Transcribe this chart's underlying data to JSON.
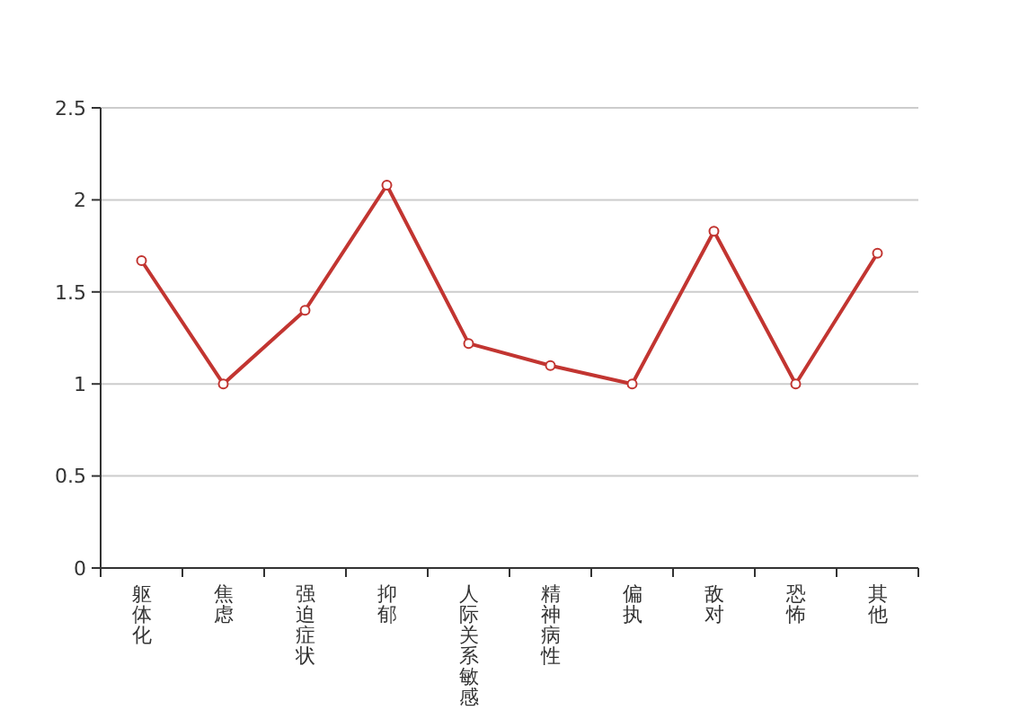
{
  "chart_data": {
    "type": "line",
    "categories": [
      "躯体化",
      "焦虑",
      "强迫症状",
      "抑郁",
      "人际关系敏感",
      "精神病性",
      "偏执",
      "敌对",
      "恐怖",
      "其他"
    ],
    "series": [
      {
        "color": "#c23531",
        "values": [
          1.67,
          1.0,
          1.4,
          2.08,
          1.22,
          1.1,
          1.0,
          1.83,
          1.0,
          1.71
        ]
      }
    ],
    "ylim": [
      0,
      2.5
    ],
    "yticks": [
      0,
      0.5,
      1,
      1.5,
      2,
      2.5
    ],
    "grid": "y",
    "marker": "circle",
    "line_style": "solid"
  }
}
